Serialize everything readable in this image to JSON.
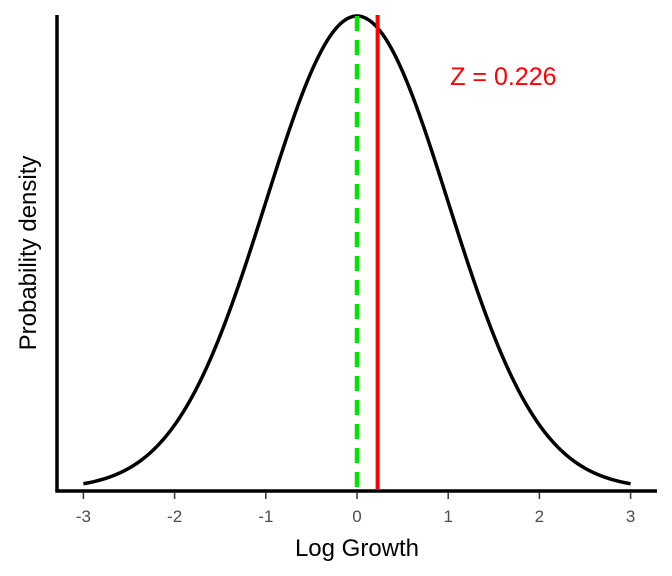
{
  "chart_data": {
    "type": "line",
    "title": "",
    "xlabel": "Log Growth",
    "ylabel": "Probability density",
    "xlim": [
      -3.3,
      3.3
    ],
    "x_ticks": [
      -3,
      -2,
      -1,
      0,
      1,
      2,
      3
    ],
    "x_tick_labels": [
      "-3",
      "-2",
      "-1",
      "0",
      "1",
      "2",
      "3"
    ],
    "y_ticks_shown": false,
    "grid": false,
    "series": [
      {
        "kind": "normal-density-curve",
        "mean": 0,
        "sd": 1,
        "x_range": [
          -3,
          3
        ],
        "color": "#000000"
      }
    ],
    "vlines": [
      {
        "x": 0,
        "style": "dashed",
        "color": "#00e600"
      },
      {
        "x": 0.226,
        "style": "solid",
        "color": "#ff0000"
      }
    ],
    "annotations": [
      {
        "text": "Z = 0.226",
        "x": 1.0,
        "color": "#ff0000"
      }
    ]
  }
}
